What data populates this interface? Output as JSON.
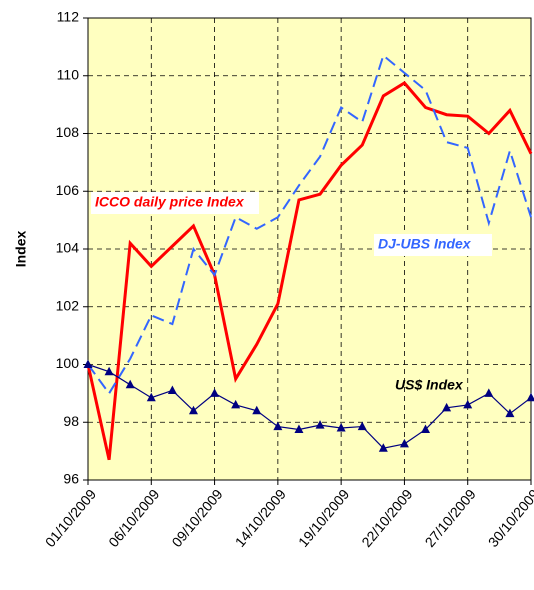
{
  "chart_data": {
    "type": "line",
    "y_label": "Index",
    "categories": [
      "01/10/2009",
      null,
      null,
      "06/10/2009",
      null,
      null,
      "09/10/2009",
      null,
      null,
      "14/10/2009",
      null,
      null,
      "19/10/2009",
      null,
      null,
      "22/10/2009",
      null,
      null,
      "27/10/2009",
      null,
      null,
      "30/10/2009"
    ],
    "series": [
      {
        "name": "ICCO daily price Index",
        "color": "#ff0000",
        "style": "solid",
        "values": [
          100,
          96.7,
          104.2,
          103.4,
          104.1,
          104.8,
          103.1,
          99.5,
          100.7,
          102.1,
          105.7,
          105.9,
          106.9,
          107.6,
          109.3,
          109.75,
          108.9,
          108.65,
          108.6,
          108.0,
          108.8,
          107.3
        ]
      },
      {
        "name": "DJ-UBS Index",
        "color": "#3366ff",
        "style": "dashed",
        "values": [
          100,
          99.0,
          100.2,
          101.7,
          101.4,
          104.0,
          103.1,
          105.1,
          104.7,
          105.1,
          106.2,
          107.2,
          108.9,
          108.4,
          110.7,
          110.1,
          109.5,
          107.7,
          107.5,
          104.9,
          107.4,
          105.1
        ]
      },
      {
        "name": "US$ Index",
        "color": "#000080",
        "style": "markers",
        "values": [
          100,
          99.75,
          99.3,
          98.85,
          99.1,
          98.4,
          99.0,
          98.6,
          98.4,
          97.85,
          97.75,
          97.9,
          97.8,
          97.85,
          97.1,
          97.25,
          97.75,
          98.5,
          98.6,
          99.0,
          98.3,
          98.85
        ]
      }
    ],
    "ylim": [
      96,
      112
    ],
    "yticks": [
      96,
      98,
      100,
      102,
      104,
      106,
      108,
      110,
      112
    ],
    "grid": true,
    "background": "#ffffc0"
  }
}
